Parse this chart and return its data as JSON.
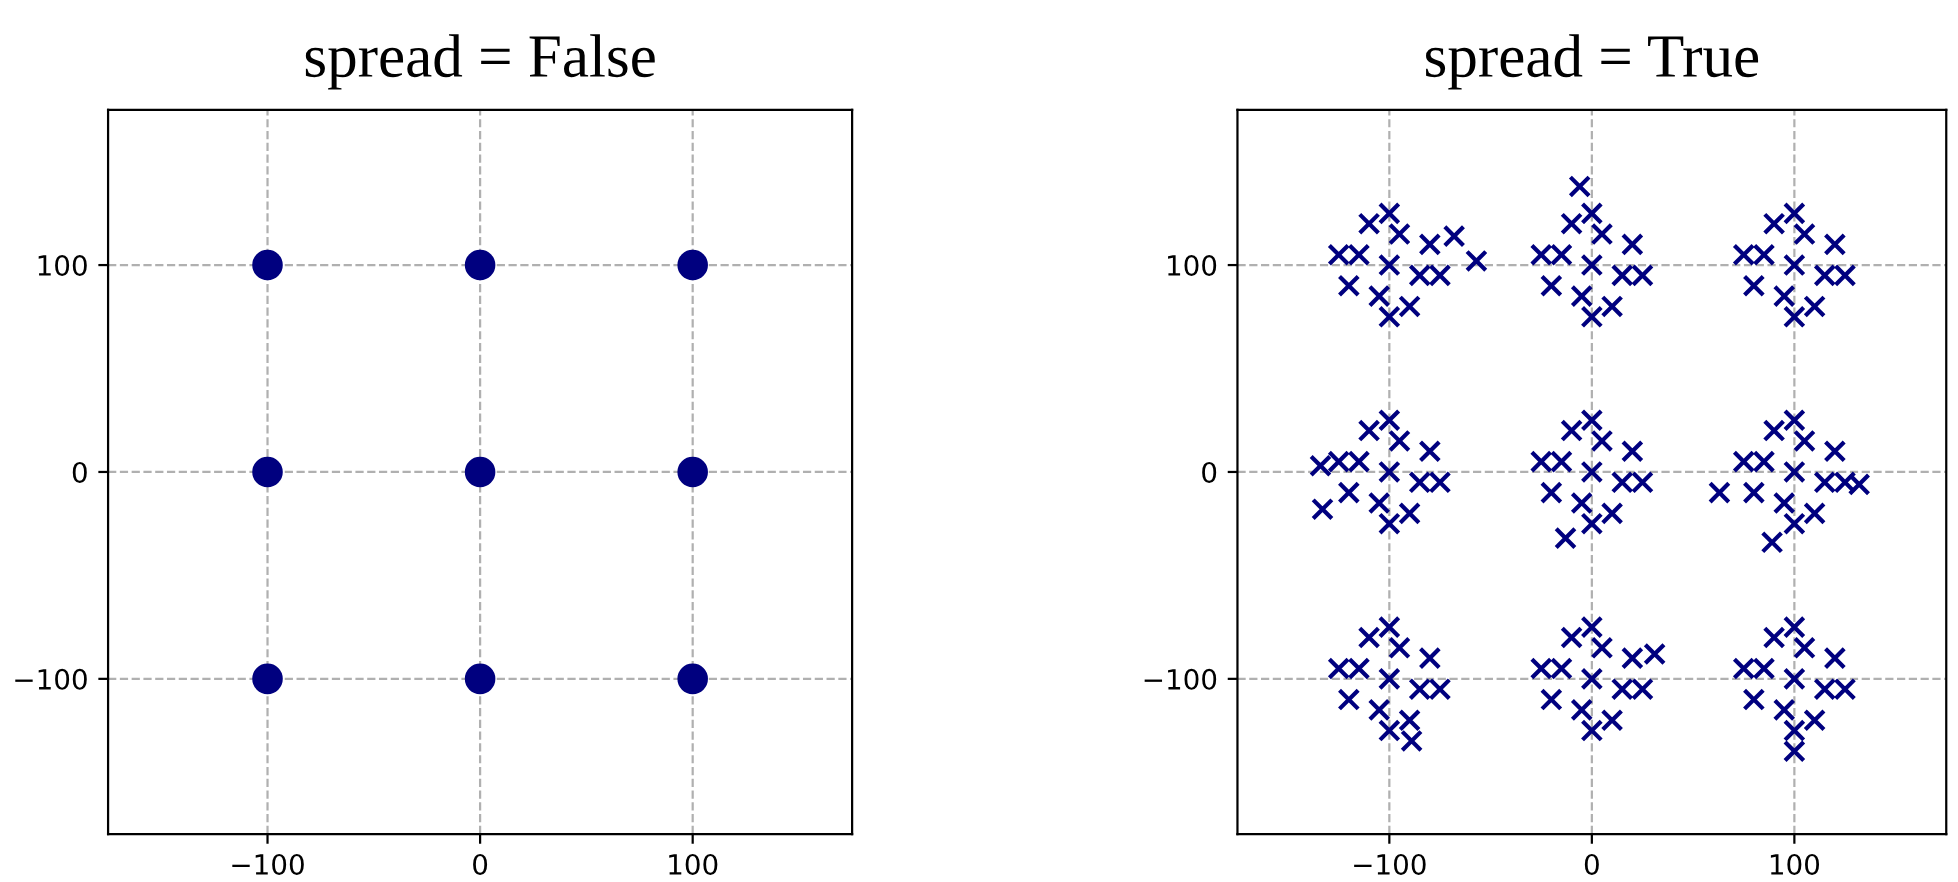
{
  "chart_data": [
    {
      "type": "scatter",
      "title": "spread = False",
      "marker": "circle",
      "grid": true,
      "xlim": [
        -175,
        175
      ],
      "ylim": [
        -175,
        175
      ],
      "xticks": [
        {
          "value": -100,
          "label": "−100"
        },
        0,
        100
      ],
      "yticks": [
        {
          "value": -100,
          "label": "−100"
        },
        0,
        100
      ],
      "series": [
        {
          "color": "#00007f",
          "x": [
            -100,
            0,
            100,
            -100,
            0,
            100,
            -100,
            0,
            100
          ],
          "values": [
            100,
            100,
            100,
            0,
            0,
            0,
            -100,
            -100,
            -100
          ]
        }
      ]
    },
    {
      "type": "scatter",
      "title": "spread = True",
      "marker": "cross",
      "grid": true,
      "xlim": [
        -175,
        175
      ],
      "ylim": [
        -175,
        175
      ],
      "xticks": [
        {
          "value": -100,
          "label": "−100"
        },
        0,
        100
      ],
      "yticks": [
        {
          "value": -100,
          "label": "−100"
        },
        0,
        100
      ],
      "series": [
        {
          "color": "#00007f",
          "x": [
            -100,
            -115,
            -85,
            -95,
            -105,
            -120,
            -80,
            -110,
            -90,
            -125,
            -75,
            -100,
            -100,
            -68,
            -57,
            0,
            -15,
            15,
            5,
            -5,
            -20,
            20,
            -10,
            10,
            -25,
            25,
            0,
            0,
            -6,
            100,
            85,
            115,
            105,
            95,
            80,
            120,
            90,
            110,
            75,
            125,
            100,
            100,
            -100,
            -115,
            -85,
            -95,
            -105,
            -120,
            -80,
            -110,
            -90,
            -125,
            -75,
            -100,
            -100,
            -134,
            -133,
            0,
            -15,
            15,
            5,
            -5,
            -20,
            20,
            -10,
            10,
            -25,
            25,
            0,
            0,
            -13,
            100,
            85,
            115,
            105,
            95,
            80,
            120,
            90,
            110,
            75,
            125,
            100,
            100,
            89,
            132,
            63,
            -100,
            -115,
            -85,
            -95,
            -105,
            -120,
            -80,
            -110,
            -90,
            -125,
            -75,
            -100,
            -100,
            -89,
            0,
            -15,
            15,
            5,
            -5,
            -20,
            20,
            -10,
            10,
            -25,
            25,
            0,
            0,
            31,
            100,
            85,
            115,
            105,
            95,
            80,
            120,
            90,
            110,
            75,
            125,
            100,
            100,
            100
          ],
          "values": [
            100,
            105,
            95,
            115,
            85,
            90,
            110,
            120,
            80,
            105,
            95,
            75,
            125,
            114,
            102,
            100,
            105,
            95,
            115,
            85,
            90,
            110,
            120,
            80,
            105,
            95,
            75,
            125,
            138,
            100,
            105,
            95,
            115,
            85,
            90,
            110,
            120,
            80,
            105,
            95,
            75,
            125,
            0,
            5,
            -5,
            15,
            -15,
            -10,
            10,
            20,
            -20,
            5,
            -5,
            -25,
            25,
            3,
            -18,
            0,
            5,
            -5,
            15,
            -15,
            -10,
            10,
            20,
            -20,
            5,
            -5,
            -25,
            25,
            -32,
            0,
            5,
            -5,
            15,
            -15,
            -10,
            10,
            20,
            -20,
            5,
            -5,
            -25,
            25,
            -34,
            -6,
            -10,
            -100,
            -95,
            -105,
            -85,
            -115,
            -110,
            -90,
            -80,
            -120,
            -95,
            -105,
            -125,
            -75,
            -130,
            -100,
            -95,
            -105,
            -85,
            -115,
            -110,
            -90,
            -80,
            -120,
            -95,
            -105,
            -125,
            -75,
            -88,
            -100,
            -95,
            -105,
            -85,
            -115,
            -110,
            -90,
            -80,
            -120,
            -95,
            -105,
            -125,
            -75,
            -135
          ]
        }
      ]
    }
  ]
}
